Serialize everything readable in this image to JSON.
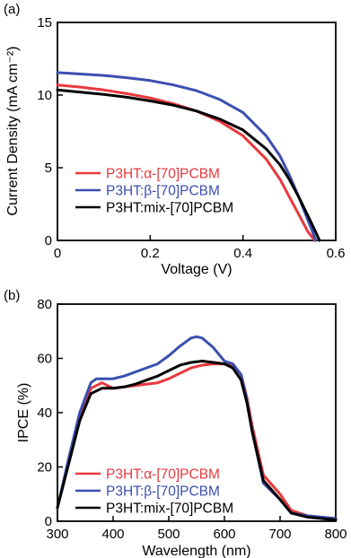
{
  "chart_data": [
    {
      "type": "line",
      "panel_label": "(a)",
      "xlabel": "Voltage (V)",
      "ylabel": "Current Density (mA cm⁻²)",
      "xlim": [
        0,
        0.6
      ],
      "ylim": [
        0,
        15
      ],
      "xticks": [
        "0",
        "0.2",
        "0.4",
        "0.6"
      ],
      "yticks": [
        "0",
        "5",
        "10",
        "15"
      ],
      "grid": false,
      "legend_position": "bottom-left",
      "series": [
        {
          "name": "P3HT:α-[70]PCBM",
          "color": "#e8383d",
          "x": [
            0,
            0.05,
            0.1,
            0.15,
            0.2,
            0.25,
            0.3,
            0.35,
            0.4,
            0.45,
            0.48,
            0.5,
            0.52,
            0.54,
            0.555
          ],
          "y": [
            10.7,
            10.55,
            10.35,
            10.1,
            9.8,
            9.4,
            8.9,
            8.2,
            7.2,
            5.6,
            4.2,
            3.0,
            1.8,
            0.6,
            0
          ]
        },
        {
          "name": "P3HT:β-[70]PCBM",
          "color": "#3b4fb0",
          "x": [
            0,
            0.05,
            0.1,
            0.15,
            0.2,
            0.25,
            0.3,
            0.35,
            0.4,
            0.45,
            0.48,
            0.5,
            0.52,
            0.54,
            0.55,
            0.557
          ],
          "y": [
            11.55,
            11.45,
            11.35,
            11.2,
            11.0,
            10.7,
            10.3,
            9.7,
            8.8,
            7.2,
            5.8,
            4.5,
            3.0,
            1.4,
            0.6,
            0
          ]
        },
        {
          "name": "P3HT:mix-[70]PCBM",
          "color": "#000000",
          "x": [
            0,
            0.05,
            0.1,
            0.15,
            0.2,
            0.25,
            0.3,
            0.35,
            0.4,
            0.45,
            0.48,
            0.5,
            0.52,
            0.54,
            0.555,
            0.565
          ],
          "y": [
            10.35,
            10.2,
            10.05,
            9.85,
            9.6,
            9.3,
            8.9,
            8.35,
            7.6,
            6.3,
            5.2,
            4.2,
            3.0,
            1.7,
            0.7,
            0
          ]
        }
      ]
    },
    {
      "type": "line",
      "panel_label": "(b)",
      "xlabel": "Wavelength (nm)",
      "ylabel": "IPCE (%)",
      "xlim": [
        300,
        800
      ],
      "ylim": [
        0,
        80
      ],
      "xticks": [
        "300",
        "400",
        "500",
        "600",
        "700",
        "800"
      ],
      "yticks": [
        "0",
        "20",
        "40",
        "60",
        "80"
      ],
      "grid": false,
      "legend_position": "bottom-left",
      "series": [
        {
          "name": "P3HT:α-[70]PCBM",
          "color": "#e8383d",
          "x": [
            300,
            320,
            340,
            360,
            380,
            400,
            420,
            440,
            460,
            480,
            500,
            520,
            540,
            560,
            580,
            600,
            615,
            630,
            640,
            650,
            670,
            700,
            720,
            750,
            800
          ],
          "y": [
            5,
            22,
            38,
            49,
            51,
            49,
            49.5,
            50,
            50.5,
            51,
            52.5,
            54.5,
            56.5,
            57.5,
            58,
            58,
            57.5,
            54,
            46,
            35,
            17,
            10,
            4,
            2,
            1
          ]
        },
        {
          "name": "P3HT:β-[70]PCBM",
          "color": "#3b4fb0",
          "x": [
            300,
            320,
            340,
            360,
            370,
            380,
            400,
            420,
            440,
            460,
            480,
            500,
            520,
            540,
            550,
            560,
            580,
            600,
            615,
            630,
            640,
            650,
            670,
            700,
            720,
            750,
            800
          ],
          "y": [
            5,
            23,
            40,
            51,
            52.5,
            52.5,
            52.5,
            53.5,
            55,
            56.5,
            58,
            61,
            64.5,
            67.5,
            68,
            67.5,
            64,
            59,
            58,
            54,
            45,
            33,
            14,
            8,
            3,
            2,
            1
          ]
        },
        {
          "name": "P3HT:mix-[70]PCBM",
          "color": "#000000",
          "x": [
            300,
            320,
            340,
            360,
            380,
            400,
            420,
            440,
            460,
            480,
            500,
            520,
            540,
            560,
            580,
            600,
            615,
            630,
            640,
            650,
            670,
            700,
            720,
            750,
            800
          ],
          "y": [
            5,
            21,
            37,
            47,
            49,
            49,
            49.5,
            50.5,
            52,
            53.5,
            55.5,
            57.5,
            58.5,
            59,
            58.5,
            58,
            56.5,
            52,
            44,
            33,
            15,
            8,
            3,
            1.5,
            0.5
          ]
        }
      ]
    }
  ]
}
